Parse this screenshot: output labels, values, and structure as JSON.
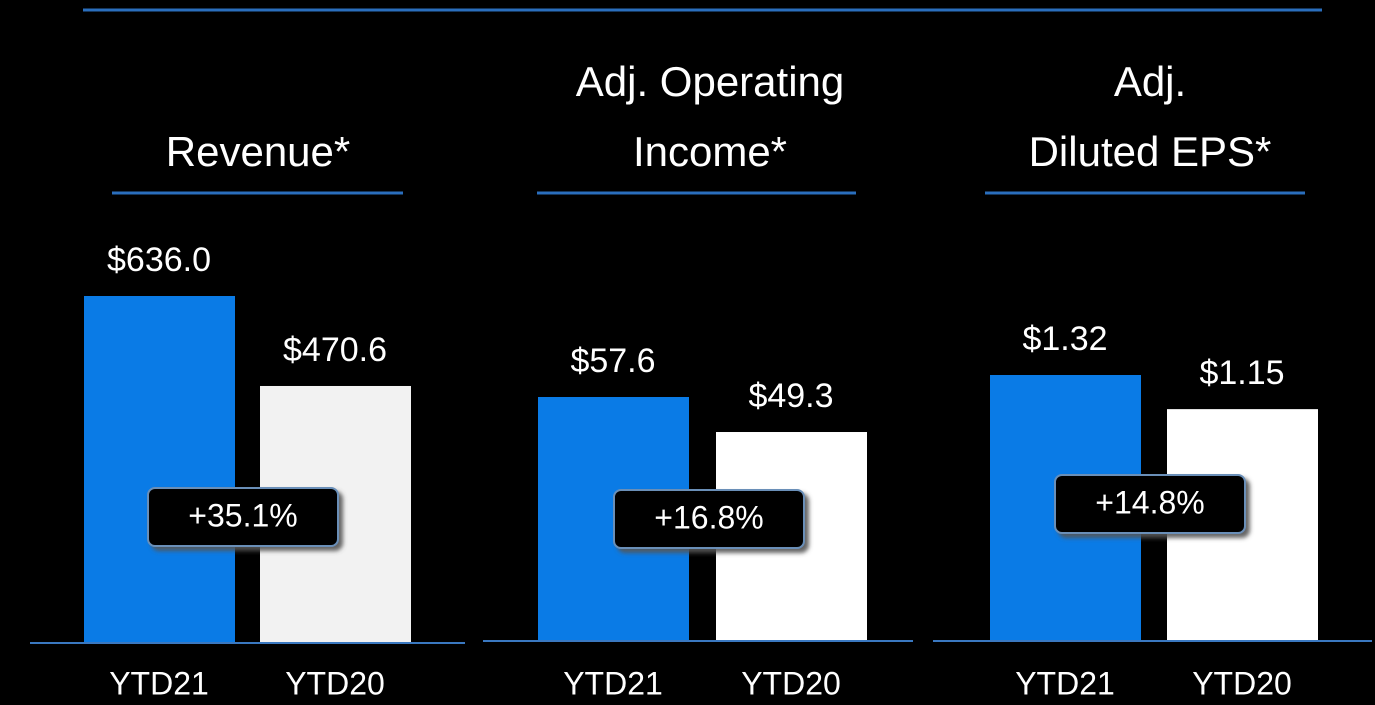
{
  "chart_data": [
    {
      "type": "bar",
      "title": [
        "Revenue*"
      ],
      "categories": [
        "YTD21",
        "YTD20"
      ],
      "values": [
        636.0,
        470.6
      ],
      "value_labels": [
        "$636.0",
        "$470.6"
      ],
      "colors": [
        "#0a7be6",
        "#f2f2f2"
      ],
      "annotation": "+35.1%"
    },
    {
      "type": "bar",
      "title": [
        "Adj. Operating",
        "Income*"
      ],
      "categories": [
        "YTD21",
        "YTD20"
      ],
      "values": [
        57.6,
        49.3
      ],
      "value_labels": [
        "$57.6",
        "$49.3"
      ],
      "colors": [
        "#0a7be6",
        "#ffffff"
      ],
      "annotation": "+16.8%"
    },
    {
      "type": "bar",
      "title": [
        "Adj.",
        "Diluted EPS*"
      ],
      "categories": [
        "YTD21",
        "YTD20"
      ],
      "values": [
        1.32,
        1.15
      ],
      "value_labels": [
        "$1.32",
        "$1.15"
      ],
      "colors": [
        "#0a7be6",
        "#ffffff"
      ],
      "annotation": "+14.8%"
    }
  ]
}
